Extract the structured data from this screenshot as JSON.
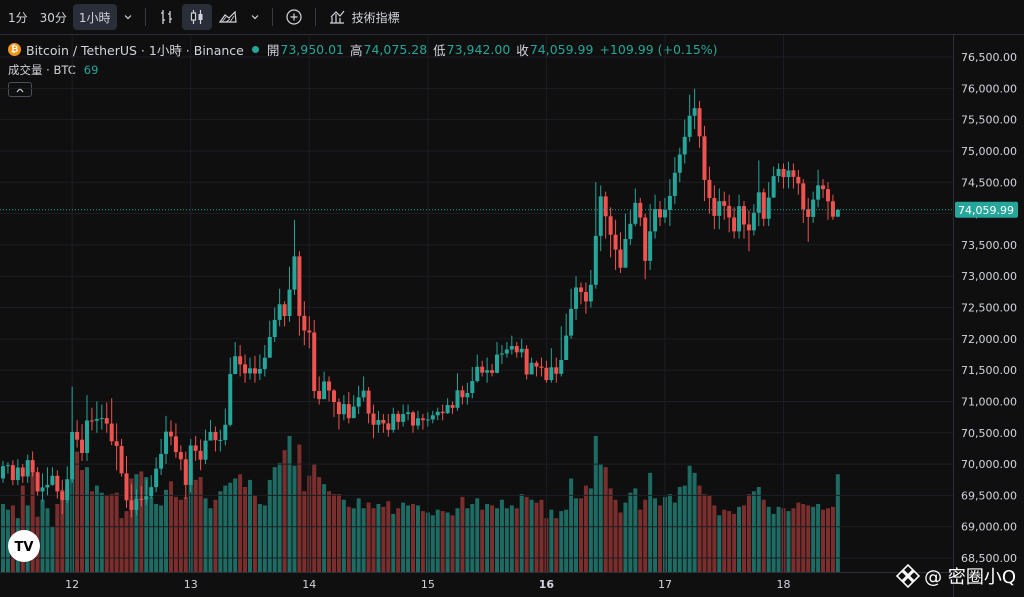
{
  "toolbar": {
    "intervals": [
      "1分",
      "30分",
      "1小時"
    ],
    "indicators_label": "技術指標"
  },
  "legend": {
    "symbol": "Bitcoin / TetherUS · 1小時 · Binance",
    "open_label": "開",
    "open": "73,950.01",
    "high_label": "高",
    "high": "74,075.28",
    "low_label": "低",
    "low": "73,942.00",
    "close_label": "收",
    "close": "74,059.99",
    "change": "+109.99 (+0.15%)",
    "volume_label": "成交量 · BTC",
    "volume_value": "69"
  },
  "price_label": "74,059.99",
  "watermark": "@ 密圈小Q",
  "colors": {
    "up": "#26a69a",
    "down": "#ef5350",
    "up_vol": "#1e6b63",
    "down_vol": "#7a2f2e"
  },
  "chart_data": {
    "type": "candlestick",
    "ylim": [
      68500,
      76500
    ],
    "y_ticks": [
      "76,500.00",
      "76,000.00",
      "75,500.00",
      "75,000.00",
      "74,500.00",
      "74,000.00",
      "73,500.00",
      "73,000.00",
      "72,500.00",
      "72,000.00",
      "71,500.00",
      "71,000.00",
      "70,500.00",
      "70,000.00",
      "69,500.00",
      "69,000.00",
      "68,500.00"
    ],
    "x_ticks": [
      {
        "label": "12",
        "index": 14
      },
      {
        "label": "13",
        "index": 38
      },
      {
        "label": "14",
        "index": 62
      },
      {
        "label": "15",
        "index": 86
      },
      {
        "label": "16",
        "index": 110
      },
      {
        "label": "17",
        "index": 134
      },
      {
        "label": "18",
        "index": 158
      }
    ],
    "bold_x_tick": "16",
    "candles": [
      [
        69770,
        69966,
        70050,
        69700,
        48
      ],
      [
        69966,
        69982,
        70030,
        69850,
        44
      ],
      [
        69982,
        69745,
        70060,
        69663,
        47
      ],
      [
        69745,
        69945,
        70078,
        69663,
        38
      ],
      [
        69945,
        69802,
        70000,
        69700,
        61
      ],
      [
        69802,
        70063,
        70150,
        69700,
        47
      ],
      [
        70063,
        69870,
        70200,
        69800,
        71
      ],
      [
        69870,
        69563,
        69950,
        69500,
        39
      ],
      [
        69563,
        69627,
        69850,
        69400,
        51
      ],
      [
        69627,
        69668,
        69950,
        69500,
        45
      ],
      [
        69668,
        69813,
        69950,
        69650,
        32
      ],
      [
        69813,
        69563,
        69900,
        69450,
        48
      ],
      [
        69563,
        69425,
        69750,
        69200,
        58
      ],
      [
        69425,
        69758,
        69963,
        69376,
        59
      ],
      [
        69758,
        70513,
        71237,
        69700,
        86
      ],
      [
        70513,
        70389,
        70700,
        70263,
        85
      ],
      [
        70389,
        70177,
        70637,
        70050,
        72
      ],
      [
        70177,
        70696,
        71100,
        70049,
        74
      ],
      [
        70696,
        70693,
        70900,
        70538,
        57
      ],
      [
        70693,
        70720,
        71000,
        70500,
        61
      ],
      [
        70720,
        70735,
        70950,
        70550,
        56
      ],
      [
        70735,
        70646,
        70983,
        70500,
        54
      ],
      [
        70646,
        70364,
        71050,
        70300,
        55
      ],
      [
        70364,
        70289,
        70650,
        69900,
        56
      ],
      [
        70289,
        69851,
        70400,
        69800,
        38
      ],
      [
        69851,
        69421,
        70128,
        69300,
        43
      ],
      [
        69421,
        69268,
        69680,
        69150,
        66
      ],
      [
        69268,
        69443,
        69600,
        69180,
        69
      ],
      [
        69443,
        69434,
        69650,
        69325,
        71
      ],
      [
        69434,
        69487,
        69750,
        69350,
        67
      ],
      [
        69487,
        69632,
        69823,
        69450,
        53
      ],
      [
        69632,
        69926,
        70107,
        69550,
        48
      ],
      [
        69926,
        70162,
        70400,
        69826,
        47
      ],
      [
        70162,
        70517,
        70770,
        70000,
        58
      ],
      [
        70517,
        70442,
        70700,
        70300,
        64
      ],
      [
        70442,
        70191,
        70650,
        70100,
        53
      ],
      [
        70191,
        70076,
        70300,
        69900,
        51
      ],
      [
        70076,
        69667,
        70200,
        69443,
        53
      ],
      [
        69667,
        70297,
        70400,
        69550,
        78
      ],
      [
        70297,
        70211,
        70450,
        70050,
        65
      ],
      [
        70211,
        70070,
        70394,
        69900,
        67
      ],
      [
        70070,
        70375,
        70550,
        70000,
        52
      ],
      [
        70375,
        70513,
        70701,
        70381,
        45
      ],
      [
        70513,
        70381,
        70600,
        70200,
        51
      ],
      [
        70381,
        70385,
        70550,
        70200,
        57
      ],
      [
        70385,
        70627,
        70887,
        70300,
        61
      ],
      [
        70627,
        71437,
        71700,
        70600,
        63
      ],
      [
        71437,
        71722,
        71950,
        71450,
        66
      ],
      [
        71722,
        71592,
        71900,
        71400,
        69
      ],
      [
        71592,
        71449,
        71748,
        71300,
        60
      ],
      [
        71449,
        71529,
        71700,
        71350,
        65
      ],
      [
        71529,
        71446,
        71728,
        71300,
        54
      ],
      [
        71446,
        71518,
        71750,
        71344,
        48
      ],
      [
        71518,
        71698,
        71900,
        71400,
        47
      ],
      [
        71698,
        72029,
        72290,
        71850,
        65
      ],
      [
        72029,
        72302,
        72500,
        71950,
        74
      ],
      [
        72302,
        72552,
        72800,
        72200,
        77
      ],
      [
        72552,
        72364,
        72600,
        72200,
        86
      ],
      [
        72364,
        72786,
        73150,
        72271,
        96
      ],
      [
        72786,
        73317,
        73900,
        72700,
        75
      ],
      [
        73317,
        72366,
        73400,
        72050,
        90
      ],
      [
        72366,
        72132,
        72600,
        71900,
        57
      ],
      [
        72132,
        72101,
        72360,
        71850,
        68
      ],
      [
        72101,
        71167,
        72300,
        71050,
        76
      ],
      [
        71167,
        71037,
        71400,
        70950,
        67
      ],
      [
        71037,
        71319,
        71475,
        71050,
        62
      ],
      [
        71319,
        71175,
        71400,
        71000,
        57
      ],
      [
        71175,
        70990,
        71200,
        70750,
        55
      ],
      [
        70990,
        70796,
        71050,
        70550,
        55
      ],
      [
        70796,
        70958,
        71100,
        70700,
        51
      ],
      [
        70958,
        70733,
        71150,
        70650,
        46
      ],
      [
        70733,
        70917,
        71100,
        70800,
        45
      ],
      [
        70917,
        71065,
        71250,
        70800,
        52
      ],
      [
        71065,
        71173,
        71400,
        71000,
        45
      ],
      [
        71173,
        70807,
        71230,
        70650,
        49
      ],
      [
        70807,
        70627,
        70950,
        70414,
        45
      ],
      [
        70627,
        70704,
        70850,
        70500,
        48
      ],
      [
        70704,
        70649,
        70800,
        70500,
        46
      ],
      [
        70649,
        70547,
        70800,
        70438,
        50
      ],
      [
        70547,
        70802,
        70900,
        70500,
        41
      ],
      [
        70802,
        70674,
        70850,
        70550,
        45
      ],
      [
        70674,
        70799,
        70950,
        70600,
        49
      ],
      [
        70799,
        70826,
        70950,
        70700,
        47
      ],
      [
        70826,
        70615,
        70850,
        70500,
        48
      ],
      [
        70615,
        70731,
        70850,
        70550,
        47
      ],
      [
        70731,
        70701,
        70800,
        70550,
        43
      ],
      [
        70701,
        70712,
        70828,
        70600,
        42
      ],
      [
        70712,
        70779,
        70850,
        70650,
        40
      ],
      [
        70779,
        70836,
        70900,
        70700,
        44
      ],
      [
        70836,
        70812,
        70950,
        70700,
        43
      ],
      [
        70812,
        70943,
        71050,
        70800,
        42
      ],
      [
        70943,
        70898,
        71000,
        70800,
        40
      ],
      [
        70898,
        71178,
        71450,
        70850,
        45
      ],
      [
        71178,
        71067,
        71250,
        70950,
        53
      ],
      [
        71067,
        71135,
        71300,
        70950,
        45
      ],
      [
        71135,
        71326,
        71550,
        71050,
        48
      ],
      [
        71326,
        71554,
        71750,
        71300,
        52
      ],
      [
        71554,
        71460,
        71650,
        71400,
        44
      ],
      [
        71460,
        71498,
        71700,
        71300,
        48
      ],
      [
        71498,
        71456,
        71600,
        71400,
        47
      ],
      [
        71456,
        71748,
        71950,
        71450,
        45
      ],
      [
        71748,
        71765,
        71900,
        71600,
        51
      ],
      [
        71765,
        71829,
        71950,
        71700,
        45
      ],
      [
        71829,
        71885,
        72050,
        71750,
        47
      ],
      [
        71885,
        71784,
        71950,
        71700,
        45
      ],
      [
        71784,
        71841,
        72000,
        71700,
        55
      ],
      [
        71841,
        71431,
        71900,
        71350,
        53
      ],
      [
        71431,
        71617,
        71700,
        71450,
        51
      ],
      [
        71617,
        71557,
        71650,
        71400,
        49
      ],
      [
        71557,
        71537,
        71700,
        71400,
        51
      ],
      [
        71537,
        71341,
        71650,
        71300,
        38
      ],
      [
        71341,
        71545,
        71850,
        71300,
        44
      ],
      [
        71545,
        71442,
        71700,
        71300,
        38
      ],
      [
        71442,
        71662,
        72200,
        71400,
        43
      ],
      [
        71662,
        72051,
        72400,
        71700,
        44
      ],
      [
        72051,
        72477,
        72800,
        72000,
        66
      ],
      [
        72477,
        72820,
        73000,
        72300,
        52
      ],
      [
        72820,
        72747,
        72900,
        72550,
        52
      ],
      [
        72747,
        72597,
        72900,
        72400,
        61
      ],
      [
        72597,
        72863,
        73100,
        72500,
        59
      ],
      [
        72863,
        73643,
        74500,
        72800,
        96
      ],
      [
        73643,
        74274,
        74450,
        73400,
        76
      ],
      [
        74274,
        73957,
        74350,
        73600,
        74
      ],
      [
        73957,
        73662,
        74100,
        73300,
        59
      ],
      [
        73662,
        73425,
        73900,
        73100,
        51
      ],
      [
        73425,
        73135,
        73700,
        73050,
        42
      ],
      [
        73135,
        73594,
        74000,
        73300,
        49
      ],
      [
        73594,
        73836,
        74050,
        73500,
        56
      ],
      [
        73836,
        74171,
        74400,
        73800,
        59
      ],
      [
        74171,
        73937,
        74250,
        73800,
        44
      ],
      [
        73937,
        73245,
        74000,
        72950,
        51
      ],
      [
        73245,
        73716,
        74150,
        73100,
        70
      ],
      [
        73716,
        74072,
        74300,
        73600,
        52
      ],
      [
        74072,
        73939,
        74200,
        73800,
        47
      ],
      [
        73939,
        74057,
        74250,
        73850,
        53
      ],
      [
        74057,
        74282,
        74550,
        73800,
        55
      ],
      [
        74282,
        74652,
        74900,
        74150,
        49
      ],
      [
        74652,
        74943,
        75050,
        74500,
        60
      ],
      [
        74943,
        75225,
        75500,
        74800,
        61
      ],
      [
        75225,
        75562,
        75900,
        75150,
        75
      ],
      [
        75562,
        75683,
        75993,
        75350,
        70
      ],
      [
        75683,
        75233,
        75800,
        75050,
        61
      ],
      [
        75233,
        74537,
        75400,
        74200,
        55
      ],
      [
        74537,
        74247,
        74750,
        74000,
        54
      ],
      [
        74247,
        73963,
        74450,
        73750,
        47
      ],
      [
        73963,
        74198,
        74400,
        73750,
        40
      ],
      [
        74198,
        74123,
        74350,
        73900,
        44
      ],
      [
        74123,
        73938,
        74300,
        73700,
        43
      ],
      [
        73938,
        73716,
        74100,
        73600,
        41
      ],
      [
        73716,
        74119,
        74300,
        73600,
        46
      ],
      [
        74119,
        73826,
        74200,
        73600,
        47
      ],
      [
        73826,
        73732,
        74050,
        73400,
        55
      ],
      [
        73732,
        74013,
        74150,
        73650,
        57
      ],
      [
        74013,
        74339,
        74850,
        73800,
        60
      ],
      [
        74339,
        73917,
        74400,
        73800,
        51
      ],
      [
        73917,
        74256,
        74500,
        73800,
        46
      ],
      [
        74256,
        74598,
        74750,
        74250,
        41
      ],
      [
        74598,
        74712,
        74800,
        74500,
        46
      ],
      [
        74712,
        74583,
        74800,
        74400,
        45
      ],
      [
        74583,
        74690,
        74828,
        74400,
        43
      ],
      [
        74690,
        74586,
        74800,
        74400,
        45
      ],
      [
        74586,
        74482,
        74700,
        74300,
        49
      ],
      [
        74482,
        74069,
        74550,
        73850,
        48
      ],
      [
        74069,
        73947,
        74250,
        73550,
        47
      ],
      [
        73947,
        74223,
        74350,
        73850,
        46
      ],
      [
        74223,
        74450,
        74700,
        74100,
        48
      ],
      [
        74450,
        74390,
        74550,
        74250,
        44
      ],
      [
        74390,
        74196,
        74500,
        73900,
        45
      ],
      [
        74196,
        73950,
        74300,
        73900,
        46
      ],
      [
        73950,
        74060,
        74075,
        73942,
        69
      ]
    ]
  }
}
